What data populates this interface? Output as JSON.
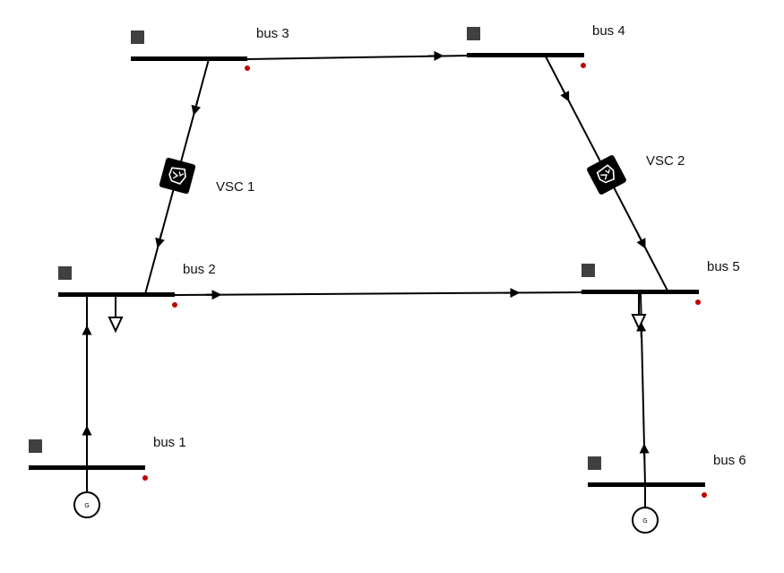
{
  "diagram": {
    "colors": {
      "line": "#000000",
      "bus_marker": "#404040",
      "dot": "#c00000",
      "background": "#ffffff"
    },
    "buses": [
      {
        "id": "bus1",
        "label": "bus 1"
      },
      {
        "id": "bus2",
        "label": "bus 2"
      },
      {
        "id": "bus3",
        "label": "bus 3"
      },
      {
        "id": "bus4",
        "label": "bus 4"
      },
      {
        "id": "bus5",
        "label": "bus 5"
      },
      {
        "id": "bus6",
        "label": "bus 6"
      }
    ],
    "converters": [
      {
        "id": "vsc1",
        "label": "VSC 1",
        "icon": "vsc-icon"
      },
      {
        "id": "vsc2",
        "label": "VSC 2",
        "icon": "vsc-icon"
      }
    ],
    "generators": [
      {
        "id": "gen1",
        "bus": "bus1",
        "label": "G"
      },
      {
        "id": "gen6",
        "bus": "bus6",
        "label": "G"
      }
    ],
    "loads": [
      {
        "id": "load2",
        "bus": "bus2",
        "icon": "load-arrow-icon"
      },
      {
        "id": "load5",
        "bus": "bus5",
        "icon": "load-arrow-icon"
      }
    ],
    "lines": [
      {
        "from": "bus3",
        "to": "bus4"
      },
      {
        "from": "bus2",
        "to": "bus5"
      },
      {
        "from": "bus3",
        "to": "bus2",
        "via": "vsc1"
      },
      {
        "from": "bus4",
        "to": "bus5",
        "via": "vsc2"
      },
      {
        "from": "bus1",
        "to": "bus2"
      },
      {
        "from": "bus6",
        "to": "bus5"
      }
    ]
  }
}
